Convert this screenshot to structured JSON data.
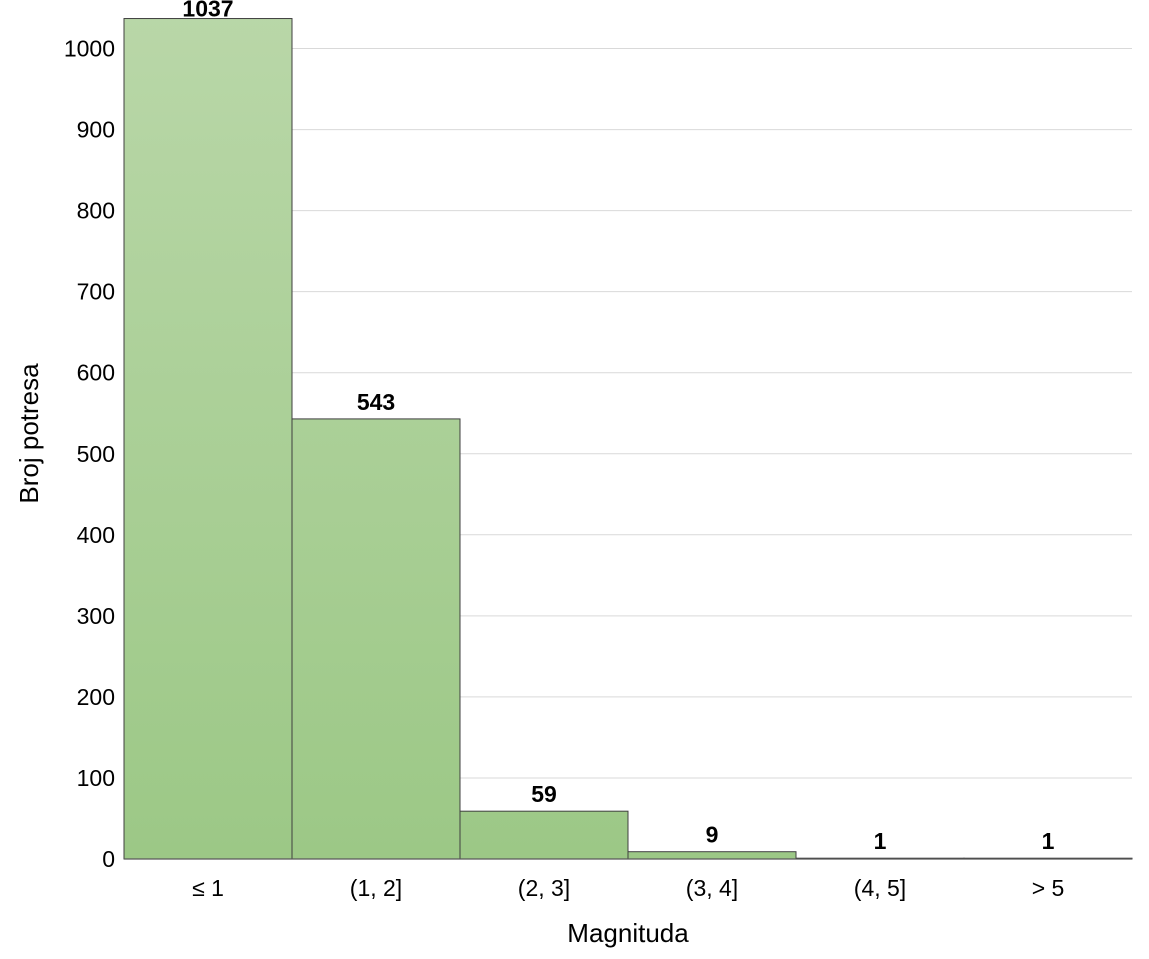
{
  "chart_data": {
    "type": "bar",
    "categories": [
      "≤ 1",
      "(1, 2]",
      "(2, 3]",
      "(3, 4]",
      "(4, 5]",
      "> 5"
    ],
    "values": [
      1037,
      543,
      59,
      9,
      1,
      1
    ],
    "data_labels": [
      "1037",
      "543",
      "59",
      "9",
      "1",
      "1"
    ],
    "xlabel": "Magnituda",
    "ylabel": "Broj potresa",
    "ylim": [
      0,
      1050
    ],
    "yticks": [
      0,
      100,
      200,
      300,
      400,
      500,
      600,
      700,
      800,
      900,
      1000
    ],
    "grid": true,
    "bar_color_top": "#b9d7a8",
    "bar_color_bottom": "#9cc886"
  }
}
